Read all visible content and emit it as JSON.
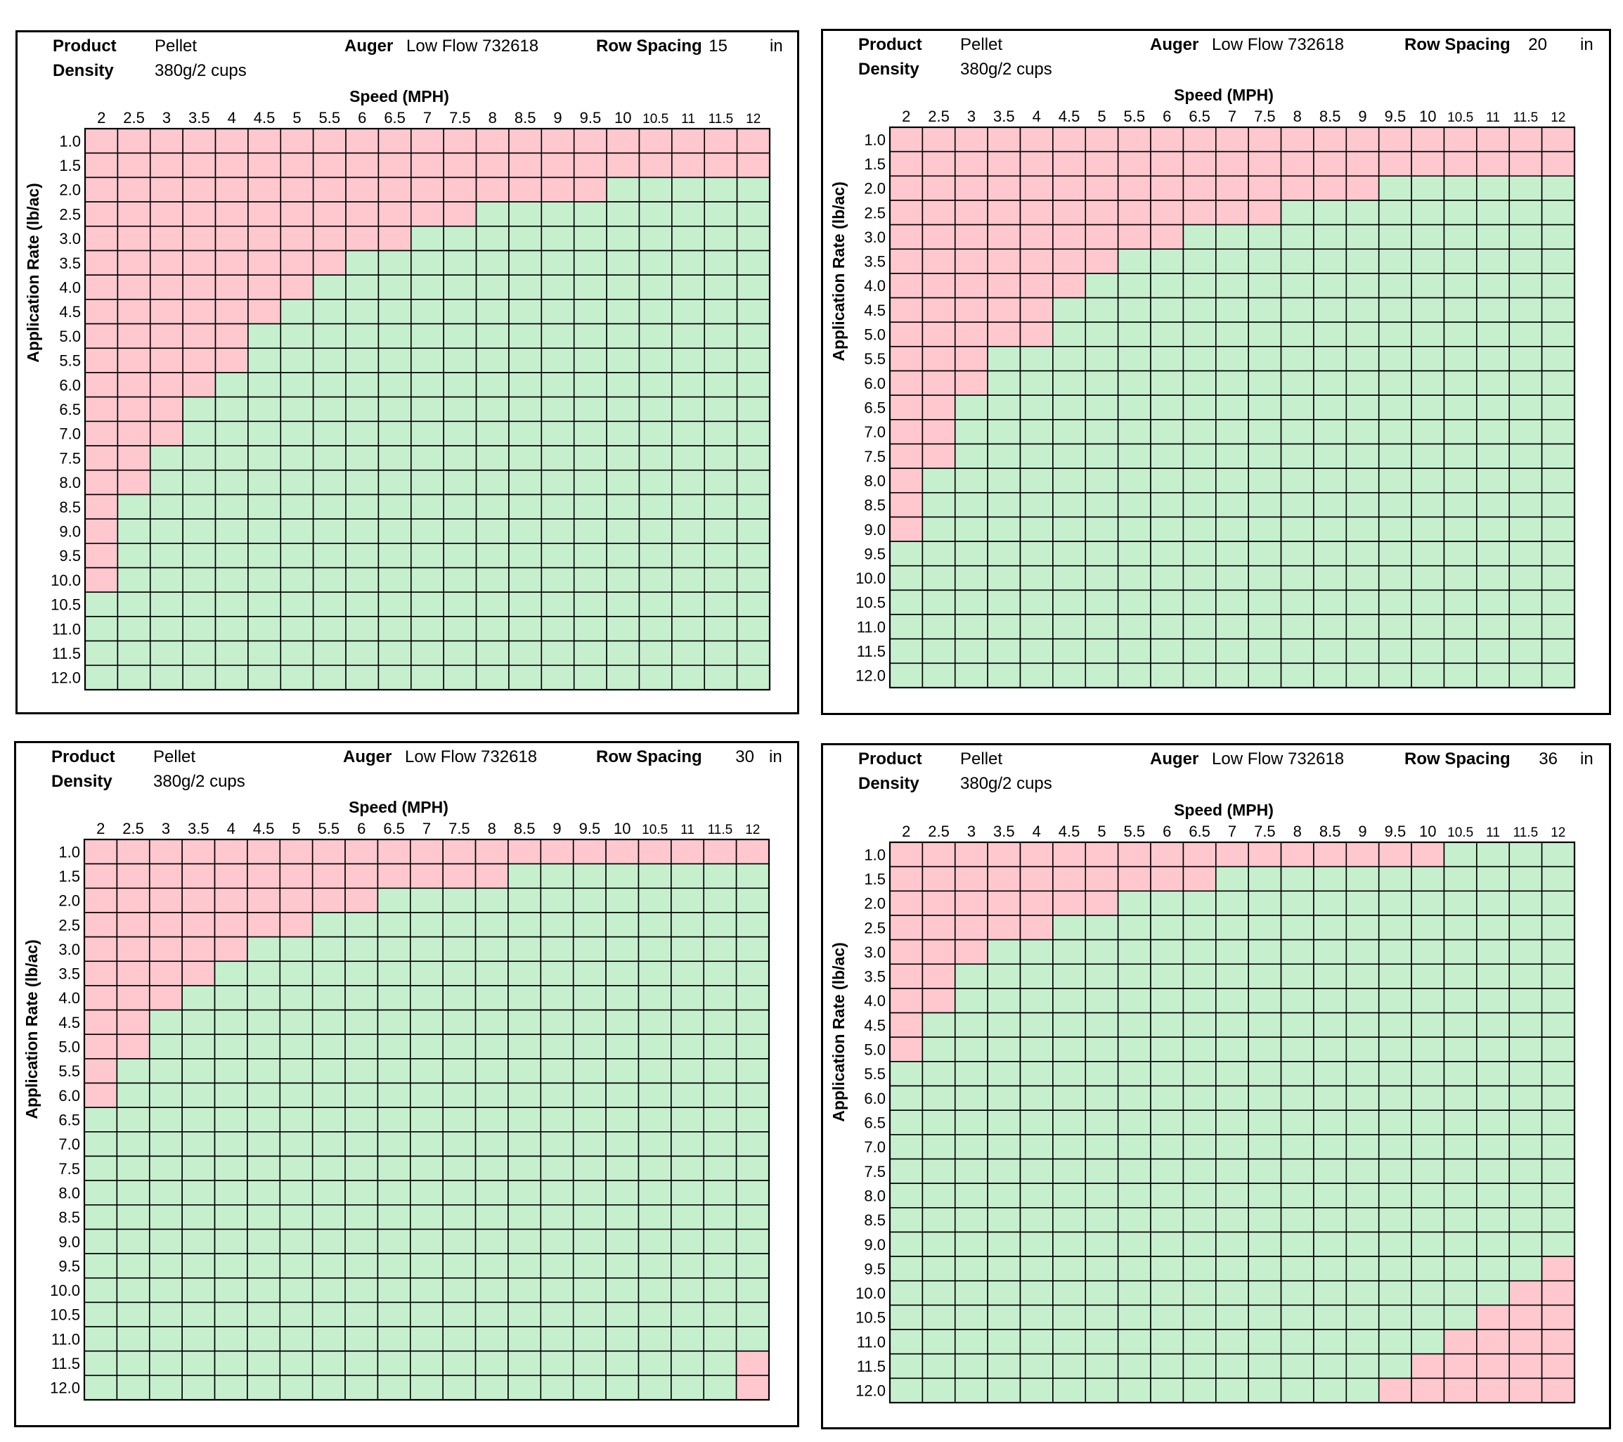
{
  "charts": [
    {
      "product_label": "Product",
      "product_value": "Pellet",
      "density_label": "Density",
      "density_value": "380g/2 cups",
      "auger_label": "Auger",
      "auger_value": "Low Flow 732618",
      "row_spacing_label": "Row Spacing",
      "row_spacing_value": "15",
      "row_spacing_unit": "in"
    },
    {
      "product_label": "Product",
      "product_value": "Pellet",
      "density_label": "Density",
      "density_value": "380g/2 cups",
      "auger_label": "Auger",
      "auger_value": "Low Flow 732618",
      "row_spacing_label": "Row Spacing",
      "row_spacing_value": "20",
      "row_spacing_unit": "in"
    },
    {
      "product_label": "Product",
      "product_value": "Pellet",
      "density_label": "Density",
      "density_value": "380g/2 cups",
      "auger_label": "Auger",
      "auger_value": "Low Flow 732618",
      "row_spacing_label": "Row Spacing",
      "row_spacing_value": "30",
      "row_spacing_unit": "in"
    },
    {
      "product_label": "Product",
      "product_value": "Pellet",
      "density_label": "Density",
      "density_value": "380g/2 cups",
      "auger_label": "Auger",
      "auger_value": "Low Flow 732618",
      "row_spacing_label": "Row Spacing",
      "row_spacing_value": "36",
      "row_spacing_unit": "in"
    }
  ],
  "colors": {
    "out_of_range": "#ffc7ce",
    "in_range": "#c6efce",
    "grid": "#000000"
  },
  "chart_data": [
    {
      "type": "heatmap",
      "xlabel": "Speed (MPH)",
      "ylabel": "Application Rate (lb/ac)",
      "x": [
        "2",
        "2.5",
        "3",
        "3.5",
        "4",
        "4.5",
        "5",
        "5.5",
        "6",
        "6.5",
        "7",
        "7.5",
        "8",
        "8.5",
        "9",
        "9.5",
        "10",
        "10.5",
        "11",
        "11.5",
        "12"
      ],
      "y": [
        "1.0",
        "1.5",
        "2.0",
        "2.5",
        "3.0",
        "3.5",
        "4.0",
        "4.5",
        "5.0",
        "5.5",
        "6.0",
        "6.5",
        "7.0",
        "7.5",
        "8.0",
        "8.5",
        "9.0",
        "9.5",
        "10.0",
        "10.5",
        "11.0",
        "11.5",
        "12.0"
      ],
      "legend_values": {
        "out_of_range": "pink",
        "in_range": "green"
      },
      "in_range_rows_per_speed": [
        [
          2,
          10.5,
          12.0
        ],
        [
          2.5,
          8.5,
          12.0
        ],
        [
          3,
          7.5,
          12.0
        ],
        [
          3.5,
          6.5,
          12.0
        ],
        [
          4,
          6.0,
          12.0
        ],
        [
          4.5,
          5.0,
          12.0
        ],
        [
          5,
          4.5,
          12.0
        ],
        [
          5.5,
          4.0,
          12.0
        ],
        [
          6,
          3.5,
          12.0
        ],
        [
          6.5,
          3.5,
          12.0
        ],
        [
          7,
          3.0,
          12.0
        ],
        [
          7.5,
          3.0,
          12.0
        ],
        [
          8,
          2.5,
          12.0
        ],
        [
          8.5,
          2.5,
          12.0
        ],
        [
          9,
          2.5,
          12.0
        ],
        [
          9.5,
          2.5,
          12.0
        ],
        [
          10,
          2.0,
          12.0
        ],
        [
          10.5,
          2.0,
          12.0
        ],
        [
          11,
          2.0,
          12.0
        ],
        [
          11.5,
          2.0,
          12.0
        ],
        [
          12,
          2.0,
          12.0
        ]
      ]
    },
    {
      "type": "heatmap",
      "xlabel": "Speed (MPH)",
      "ylabel": "Application Rate (lb/ac)",
      "x": [
        "2",
        "2.5",
        "3",
        "3.5",
        "4",
        "4.5",
        "5",
        "5.5",
        "6",
        "6.5",
        "7",
        "7.5",
        "8",
        "8.5",
        "9",
        "9.5",
        "10",
        "10.5",
        "11",
        "11.5",
        "12"
      ],
      "y": [
        "1.0",
        "1.5",
        "2.0",
        "2.5",
        "3.0",
        "3.5",
        "4.0",
        "4.5",
        "5.0",
        "5.5",
        "6.0",
        "6.5",
        "7.0",
        "7.5",
        "8.0",
        "8.5",
        "9.0",
        "9.5",
        "10.0",
        "10.5",
        "11.0",
        "11.5",
        "12.0"
      ],
      "legend_values": {
        "out_of_range": "pink",
        "in_range": "green"
      },
      "in_range_rows_per_speed": [
        [
          2,
          9.5,
          12.0
        ],
        [
          2.5,
          8.0,
          12.0
        ],
        [
          3,
          6.5,
          12.0
        ],
        [
          3.5,
          5.5,
          12.0
        ],
        [
          4,
          5.5,
          12.0
        ],
        [
          4.5,
          4.5,
          12.0
        ],
        [
          5,
          4.0,
          12.0
        ],
        [
          5.5,
          3.5,
          12.0
        ],
        [
          6,
          3.5,
          12.0
        ],
        [
          6.5,
          3.0,
          12.0
        ],
        [
          7,
          3.0,
          12.0
        ],
        [
          7.5,
          3.0,
          12.0
        ],
        [
          8,
          2.5,
          12.0
        ],
        [
          8.5,
          2.5,
          12.0
        ],
        [
          9,
          2.5,
          12.0
        ],
        [
          9.5,
          2.0,
          12.0
        ],
        [
          10,
          2.0,
          12.0
        ],
        [
          10.5,
          2.0,
          12.0
        ],
        [
          11,
          2.0,
          12.0
        ],
        [
          11.5,
          2.0,
          12.0
        ],
        [
          12,
          2.0,
          12.0
        ]
      ]
    },
    {
      "type": "heatmap",
      "xlabel": "Speed (MPH)",
      "ylabel": "Application Rate (lb/ac)",
      "x": [
        "2",
        "2.5",
        "3",
        "3.5",
        "4",
        "4.5",
        "5",
        "5.5",
        "6",
        "6.5",
        "7",
        "7.5",
        "8",
        "8.5",
        "9",
        "9.5",
        "10",
        "10.5",
        "11",
        "11.5",
        "12"
      ],
      "y": [
        "1.0",
        "1.5",
        "2.0",
        "2.5",
        "3.0",
        "3.5",
        "4.0",
        "4.5",
        "5.0",
        "5.5",
        "6.0",
        "6.5",
        "7.0",
        "7.5",
        "8.0",
        "8.5",
        "9.0",
        "9.5",
        "10.0",
        "10.5",
        "11.0",
        "11.5",
        "12.0"
      ],
      "legend_values": {
        "out_of_range": "pink",
        "in_range": "green"
      },
      "in_range_rows_per_speed": [
        [
          2,
          6.5,
          12.0
        ],
        [
          2.5,
          5.5,
          12.0
        ],
        [
          3,
          4.5,
          12.0
        ],
        [
          3.5,
          4.0,
          12.0
        ],
        [
          4,
          3.5,
          12.0
        ],
        [
          4.5,
          3.0,
          12.0
        ],
        [
          5,
          3.0,
          12.0
        ],
        [
          5.5,
          2.5,
          12.0
        ],
        [
          6,
          2.5,
          12.0
        ],
        [
          6.5,
          2.0,
          12.0
        ],
        [
          7,
          2.0,
          12.0
        ],
        [
          7.5,
          2.0,
          12.0
        ],
        [
          8,
          2.0,
          12.0
        ],
        [
          8.5,
          1.5,
          12.0
        ],
        [
          9,
          1.5,
          12.0
        ],
        [
          9.5,
          1.5,
          12.0
        ],
        [
          10,
          1.5,
          12.0
        ],
        [
          10.5,
          1.5,
          12.0
        ],
        [
          11,
          1.5,
          12.0
        ],
        [
          11.5,
          1.5,
          12.0
        ],
        [
          12,
          1.5,
          11.0
        ]
      ]
    },
    {
      "type": "heatmap",
      "xlabel": "Speed (MPH)",
      "ylabel": "Application Rate (lb/ac)",
      "x": [
        "2",
        "2.5",
        "3",
        "3.5",
        "4",
        "4.5",
        "5",
        "5.5",
        "6",
        "6.5",
        "7",
        "7.5",
        "8",
        "8.5",
        "9",
        "9.5",
        "10",
        "10.5",
        "11",
        "11.5",
        "12"
      ],
      "y": [
        "1.0",
        "1.5",
        "2.0",
        "2.5",
        "3.0",
        "3.5",
        "4.0",
        "4.5",
        "5.0",
        "5.5",
        "6.0",
        "6.5",
        "7.0",
        "7.5",
        "8.0",
        "8.5",
        "9.0",
        "9.5",
        "10.0",
        "10.5",
        "11.0",
        "11.5",
        "12.0"
      ],
      "legend_values": {
        "out_of_range": "pink",
        "in_range": "green"
      },
      "in_range_rows_per_speed": [
        [
          2,
          5.5,
          12.0
        ],
        [
          2.5,
          4.5,
          12.0
        ],
        [
          3,
          3.5,
          12.0
        ],
        [
          3.5,
          3.0,
          12.0
        ],
        [
          4,
          3.0,
          12.0
        ],
        [
          4.5,
          2.5,
          12.0
        ],
        [
          5,
          2.5,
          12.0
        ],
        [
          5.5,
          2.0,
          12.0
        ],
        [
          6,
          2.0,
          12.0
        ],
        [
          6.5,
          2.0,
          12.0
        ],
        [
          7,
          1.5,
          12.0
        ],
        [
          7.5,
          1.5,
          12.0
        ],
        [
          8,
          1.5,
          12.0
        ],
        [
          8.5,
          1.5,
          12.0
        ],
        [
          9,
          1.5,
          12.0
        ],
        [
          9.5,
          1.5,
          11.5
        ],
        [
          10,
          1.5,
          11.0
        ],
        [
          10.5,
          1.0,
          10.5
        ],
        [
          11,
          1.0,
          10.0
        ],
        [
          11.5,
          1.0,
          9.5
        ],
        [
          12,
          1.0,
          9.0
        ]
      ]
    }
  ]
}
